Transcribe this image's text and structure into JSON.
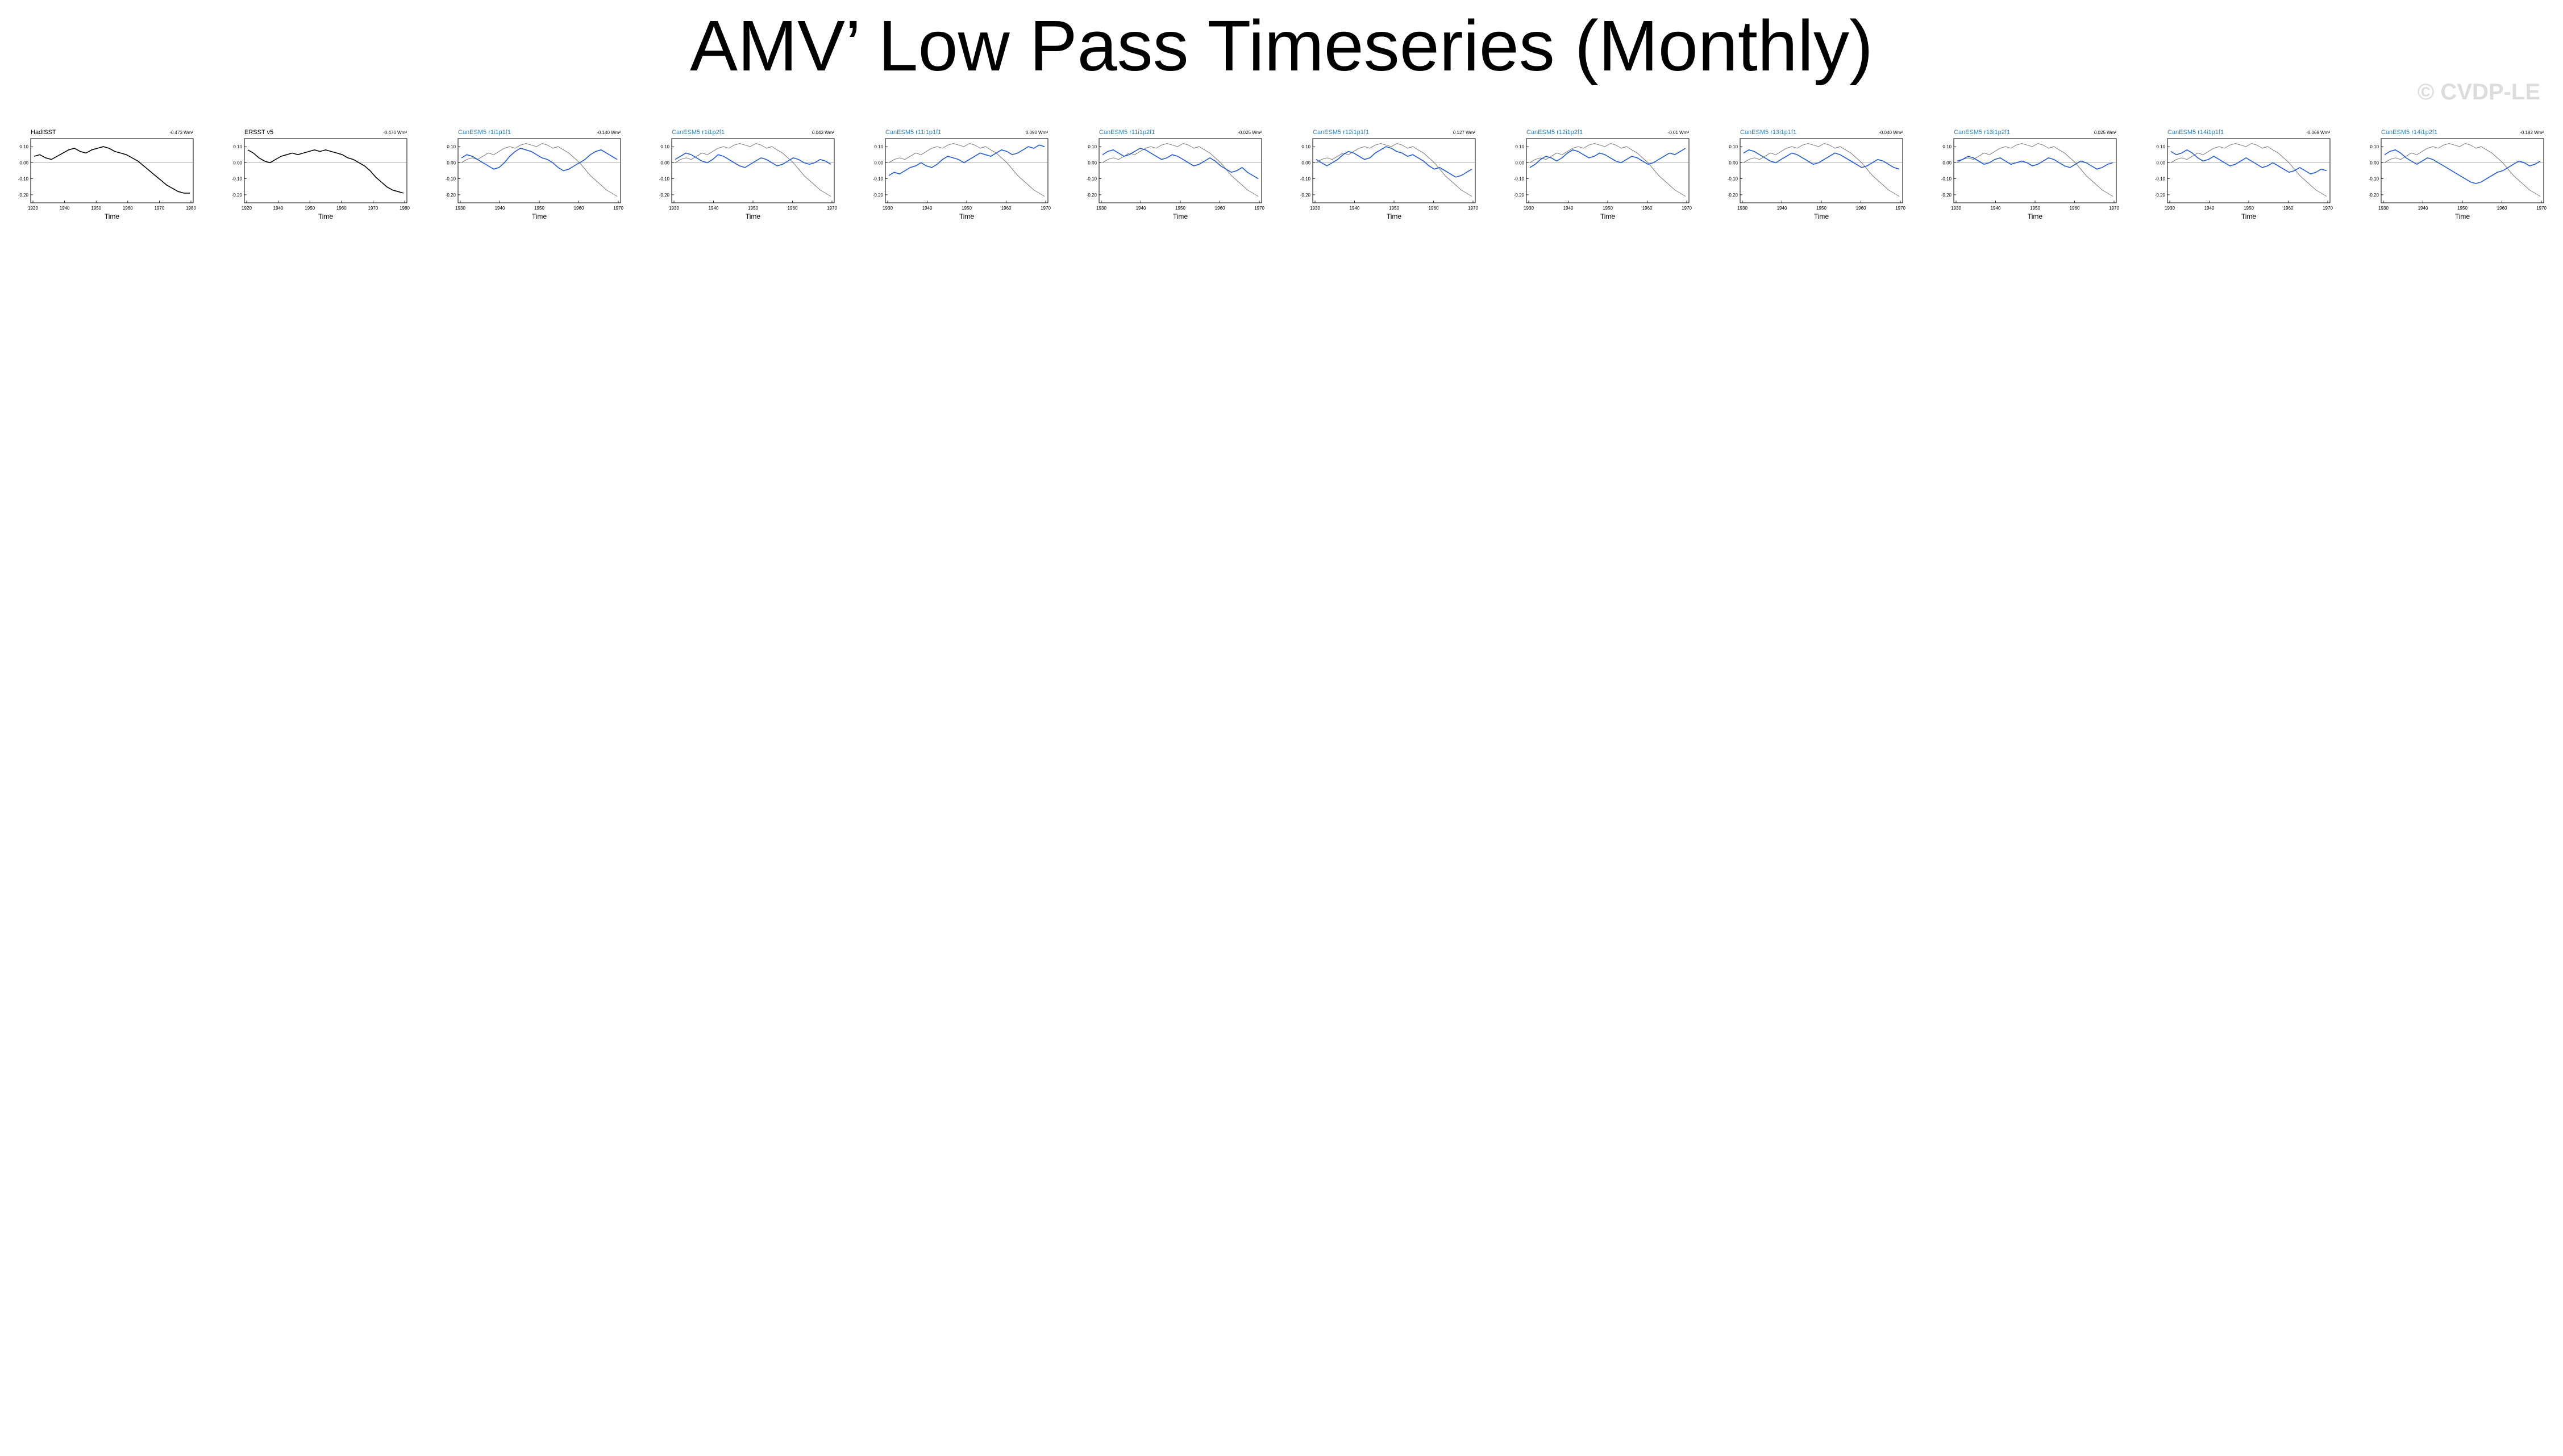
{
  "figure": {
    "title": "AMV’ Low Pass Timeseries (Monthly)",
    "watermark": "© CVDP-LE"
  },
  "colors": {
    "member_line": "#1f5bd6",
    "reference_line": "#777777",
    "zero_line": "#999999",
    "obs_title": "#000000",
    "CanESM5": "#2a7fbf",
    "CESM2": "#5aa845",
    "CNRM": "#7fb0d8",
    "GISS": "#d47a12",
    "IPSL": "#6a4fc0",
    "MIROC": "#d9a87a"
  },
  "chart_data": {
    "type": "line",
    "layout": "small-multiples",
    "xlabel": "Time",
    "ylabel": "",
    "xticks": [
      "1920",
      "1940",
      "1950",
      "1960",
      "1970",
      "1980"
    ],
    "member_xticks": [
      "1930",
      "1940",
      "1950",
      "1960",
      "1970"
    ],
    "yticks": [
      "0.10",
      "0.00",
      "-0.10",
      "-0.20"
    ],
    "ylim": [
      -0.25,
      0.15
    ],
    "reference_series": [
      0.0,
      0.02,
      0.03,
      0.02,
      0.04,
      0.06,
      0.05,
      0.07,
      0.09,
      0.1,
      0.09,
      0.11,
      0.12,
      0.11,
      0.1,
      0.12,
      0.11,
      0.09,
      0.1,
      0.08,
      0.06,
      0.03,
      0.0,
      -0.04,
      -0.08,
      -0.11,
      -0.14,
      -0.17,
      -0.19,
      -0.21
    ],
    "panels": [
      {
        "title": "HadISST",
        "trend": "-0.473 Wm²",
        "group": "obs",
        "series": [
          0.04,
          0.05,
          0.03,
          0.02,
          0.04,
          0.06,
          0.08,
          0.09,
          0.07,
          0.06,
          0.08,
          0.09,
          0.1,
          0.09,
          0.07,
          0.06,
          0.05,
          0.03,
          0.01,
          -0.02,
          -0.05,
          -0.08,
          -0.11,
          -0.14,
          -0.16,
          -0.18,
          -0.19,
          -0.19
        ]
      },
      {
        "title": "ERSST v5",
        "trend": "-0.470 Wm²",
        "group": "obs",
        "series": [
          0.08,
          0.06,
          0.03,
          0.01,
          0.0,
          0.02,
          0.04,
          0.05,
          0.06,
          0.05,
          0.06,
          0.07,
          0.08,
          0.07,
          0.08,
          0.07,
          0.06,
          0.05,
          0.03,
          0.02,
          0.0,
          -0.02,
          -0.05,
          -0.09,
          -0.12,
          -0.15,
          -0.17,
          -0.18,
          -0.19
        ]
      },
      {
        "title": "CanESM5 r1i1p1f1",
        "trend": "-0.140 Wm²",
        "group": "CanESM5",
        "series": [
          0.03,
          0.05,
          0.04,
          0.02,
          0.0,
          -0.02,
          -0.04,
          -0.03,
          0.0,
          0.04,
          0.07,
          0.09,
          0.08,
          0.07,
          0.05,
          0.03,
          0.02,
          0.0,
          -0.03,
          -0.05,
          -0.04,
          -0.02,
          0.0,
          0.02,
          0.05,
          0.07,
          0.08,
          0.06,
          0.04,
          0.02
        ]
      },
      {
        "title": "CanESM5 r1i1p2f1",
        "trend": "0.043 Wm²",
        "group": "CanESM5",
        "series": [
          0.02,
          0.04,
          0.06,
          0.05,
          0.03,
          0.01,
          0.0,
          0.02,
          0.05,
          0.04,
          0.02,
          0.0,
          -0.02,
          -0.03,
          -0.01,
          0.01,
          0.03,
          0.02,
          0.0,
          -0.02,
          -0.01,
          0.01,
          0.03,
          0.02,
          0.0,
          -0.01,
          0.0,
          0.02,
          0.01,
          -0.01
        ]
      },
      {
        "title": "CanESM5 r11i1p1f1",
        "trend": "0.090 Wm²",
        "group": "CanESM5",
        "series": [
          -0.08,
          -0.06,
          -0.07,
          -0.05,
          -0.03,
          -0.02,
          0.0,
          -0.02,
          -0.03,
          -0.01,
          0.02,
          0.04,
          0.03,
          0.02,
          0.0,
          0.02,
          0.04,
          0.06,
          0.05,
          0.04,
          0.06,
          0.08,
          0.07,
          0.05,
          0.06,
          0.08,
          0.1,
          0.09,
          0.11,
          0.1
        ]
      },
      {
        "title": "CanESM5 r11i1p2f1",
        "trend": "-0.025 Wm²",
        "group": "CanESM5",
        "series": [
          0.05,
          0.07,
          0.08,
          0.06,
          0.04,
          0.05,
          0.07,
          0.09,
          0.08,
          0.06,
          0.04,
          0.02,
          0.03,
          0.05,
          0.04,
          0.02,
          0.0,
          -0.02,
          -0.01,
          0.01,
          0.03,
          0.01,
          -0.02,
          -0.04,
          -0.06,
          -0.05,
          -0.03,
          -0.06,
          -0.08,
          -0.1
        ]
      },
      {
        "title": "CanESM5 r12i1p1f1",
        "trend": "0.127 Wm²",
        "group": "CanESM5",
        "series": [
          0.02,
          0.0,
          -0.02,
          0.0,
          0.02,
          0.05,
          0.07,
          0.06,
          0.04,
          0.02,
          0.03,
          0.06,
          0.08,
          0.1,
          0.09,
          0.07,
          0.06,
          0.04,
          0.05,
          0.03,
          0.01,
          -0.02,
          -0.04,
          -0.03,
          -0.05,
          -0.07,
          -0.09,
          -0.08,
          -0.06,
          -0.04
        ]
      },
      {
        "title": "CanESM5 r12i1p2f1",
        "trend": "-0.01 Wm²",
        "group": "CanESM5",
        "series": [
          -0.03,
          -0.01,
          0.02,
          0.04,
          0.03,
          0.01,
          0.03,
          0.06,
          0.08,
          0.07,
          0.05,
          0.03,
          0.04,
          0.06,
          0.05,
          0.03,
          0.01,
          0.0,
          0.02,
          0.04,
          0.03,
          0.01,
          -0.01,
          0.0,
          0.02,
          0.04,
          0.06,
          0.05,
          0.07,
          0.09
        ]
      },
      {
        "title": "CanESM5 r13i1p1f1",
        "trend": "-0.040 Wm²",
        "group": "CanESM5",
        "series": [
          0.06,
          0.08,
          0.07,
          0.05,
          0.03,
          0.01,
          0.0,
          0.02,
          0.04,
          0.06,
          0.05,
          0.03,
          0.01,
          -0.01,
          0.0,
          0.02,
          0.04,
          0.06,
          0.05,
          0.03,
          0.01,
          -0.01,
          -0.03,
          -0.02,
          0.0,
          0.02,
          0.01,
          -0.01,
          -0.03,
          -0.04
        ]
      },
      {
        "title": "CanESM5 r13i1p2f1",
        "trend": "0.025 Wm²",
        "group": "CanESM5",
        "series": [
          0.01,
          0.02,
          0.04,
          0.03,
          0.01,
          -0.01,
          0.0,
          0.02,
          0.03,
          0.01,
          -0.01,
          0.0,
          0.01,
          0.0,
          -0.02,
          -0.01,
          0.01,
          0.03,
          0.02,
          0.0,
          -0.02,
          -0.03,
          -0.01,
          0.01,
          0.0,
          -0.02,
          -0.04,
          -0.03,
          -0.01,
          0.0
        ]
      },
      {
        "title": "CanESM5 r14i1p1f1",
        "trend": "-0.069 Wm²",
        "group": "CanESM5",
        "series": [
          0.07,
          0.05,
          0.06,
          0.08,
          0.06,
          0.03,
          0.01,
          0.02,
          0.04,
          0.02,
          0.0,
          -0.02,
          -0.01,
          0.01,
          0.03,
          0.01,
          -0.01,
          -0.03,
          -0.02,
          0.0,
          -0.02,
          -0.04,
          -0.06,
          -0.05,
          -0.03,
          -0.05,
          -0.07,
          -0.06,
          -0.04,
          -0.05
        ]
      },
      {
        "title": "CanESM5 r14i1p2f1",
        "trend": "-0.182 Wm²",
        "group": "CanESM5",
        "series": [
          0.05,
          0.07,
          0.08,
          0.06,
          0.03,
          0.01,
          -0.01,
          0.01,
          0.03,
          0.02,
          0.0,
          -0.02,
          -0.04,
          -0.06,
          -0.08,
          -0.1,
          -0.12,
          -0.13,
          -0.12,
          -0.1,
          -0.08,
          -0.06,
          -0.05,
          -0.03,
          -0.01,
          0.01,
          0.0,
          -0.02,
          -0.01,
          0.01
        ]
      }
    ],
    "more_panels_note": ""
  }
}
